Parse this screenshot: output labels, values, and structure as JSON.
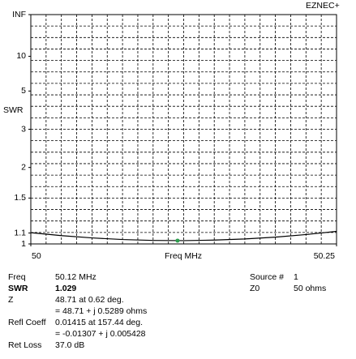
{
  "chart_data": {
    "type": "line",
    "brand": "EZNEC+",
    "xlabel": "Freq MHz",
    "ylabel": "SWR",
    "scale": "reflection-coefficient",
    "grid": true,
    "x": [
      50,
      50.025,
      50.05,
      50.075,
      50.1,
      50.125,
      50.15,
      50.175,
      50.2,
      50.225,
      50.25
    ],
    "series": [
      {
        "color": "#000000",
        "values": [
          1.103,
          1.075,
          1.054,
          1.039,
          1.031,
          1.029,
          1.034,
          1.044,
          1.061,
          1.085,
          1.116
        ]
      }
    ],
    "marker": {
      "x": 50.12,
      "y": 1.029,
      "color": "#2e9e4f"
    },
    "xlim": [
      50,
      50.25
    ],
    "xticks": [
      50,
      50.25
    ],
    "ylim": [
      1,
      null
    ],
    "yticks": [
      1,
      1.1,
      1.5,
      2,
      3,
      5,
      10,
      {
        "value": null,
        "label": "INF"
      }
    ],
    "readout": {
      "left": [
        {
          "label": "Freq",
          "value": "50.12 MHz"
        },
        {
          "label": "SWR",
          "value": "1.029"
        },
        {
          "label": "Z",
          "value": "48.71 at 0.62 deg."
        },
        {
          "label": "",
          "value": "= 48.71 + j 0.5289 ohms"
        },
        {
          "label": "Refl Coeff",
          "value": "0.01415 at 157.44 deg."
        },
        {
          "label": "",
          "value": "= -0.01307 + j 0.005428"
        },
        {
          "label": "Ret Loss",
          "value": "37.0 dB"
        }
      ],
      "right": [
        {
          "label": "Source #",
          "value": "1"
        },
        {
          "label": "Z0",
          "value": "50 ohms"
        }
      ]
    }
  }
}
